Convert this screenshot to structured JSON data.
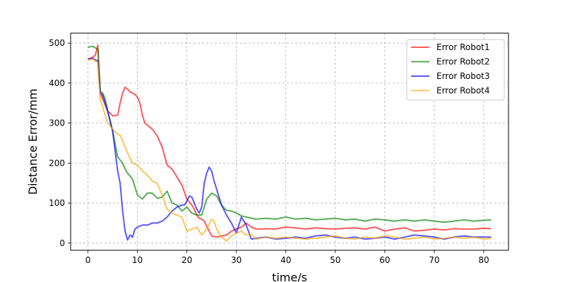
{
  "chart_data": {
    "type": "line",
    "title": "",
    "xlabel": "time/s",
    "ylabel": "Distance Error/mm",
    "xlim": [
      -3.5,
      85
    ],
    "ylim": [
      -18,
      525
    ],
    "x_ticks": [
      0,
      10,
      20,
      30,
      40,
      50,
      60,
      70,
      80
    ],
    "y_ticks": [
      0,
      100,
      200,
      300,
      400,
      500
    ],
    "grid": true,
    "grid_style": "dashed",
    "legend_position": "top-right",
    "series": [
      {
        "name": "Error Robot1",
        "color": "#ff0000",
        "x": [
          0,
          1,
          1.5,
          2,
          2.5,
          3,
          3.5,
          4,
          4.5,
          5,
          6,
          6.5,
          7,
          7.5,
          8,
          8.5,
          9,
          9.5,
          10,
          10.5,
          11,
          11.5,
          12,
          12.5,
          13,
          14,
          15,
          16,
          17,
          18,
          19,
          20,
          21,
          21.5,
          22,
          22.5,
          23,
          23.5,
          24,
          25,
          26,
          27,
          28,
          29,
          30,
          31,
          32,
          33,
          34,
          35,
          36,
          38,
          40,
          42,
          44,
          46,
          48,
          50,
          52,
          54,
          56,
          58,
          60,
          62,
          64,
          66,
          68,
          70,
          72,
          74,
          76,
          78,
          80,
          81.5
        ],
        "y": [
          460,
          465,
          470,
          495,
          375,
          360,
          345,
          330,
          325,
          318,
          320,
          350,
          375,
          390,
          385,
          378,
          375,
          372,
          365,
          350,
          320,
          300,
          295,
          290,
          285,
          268,
          240,
          195,
          185,
          165,
          145,
          110,
          95,
          85,
          70,
          62,
          60,
          55,
          42,
          18,
          15,
          18,
          20,
          30,
          35,
          40,
          50,
          40,
          35,
          35,
          36,
          35,
          40,
          38,
          35,
          38,
          36,
          35,
          37,
          38,
          35,
          40,
          30,
          35,
          38,
          30,
          32,
          35,
          33,
          36,
          35,
          35,
          37,
          36
        ]
      },
      {
        "name": "Error Robot2",
        "color": "#008000",
        "x": [
          0,
          1,
          1.5,
          2,
          2.5,
          3,
          3.5,
          4,
          5,
          6,
          7,
          7.5,
          8,
          9,
          10,
          11,
          12,
          13,
          14,
          15,
          16,
          17,
          18,
          19,
          20,
          21,
          22,
          23,
          24,
          25,
          26,
          27,
          28,
          29,
          30,
          31,
          32,
          34,
          36,
          38,
          40,
          42,
          44,
          46,
          48,
          50,
          52,
          54,
          56,
          58,
          60,
          62,
          64,
          66,
          68,
          70,
          72,
          74,
          76,
          78,
          80,
          81.5
        ],
        "y": [
          490,
          492,
          488,
          485,
          380,
          375,
          360,
          330,
          280,
          215,
          200,
          185,
          175,
          160,
          120,
          110,
          125,
          125,
          112,
          115,
          130,
          100,
          95,
          80,
          90,
          75,
          70,
          70,
          110,
          125,
          118,
          95,
          82,
          80,
          75,
          68,
          65,
          60,
          62,
          60,
          65,
          60,
          62,
          58,
          60,
          62,
          58,
          60,
          55,
          60,
          58,
          55,
          58,
          55,
          58,
          55,
          52,
          55,
          58,
          55,
          57,
          58
        ]
      },
      {
        "name": "Error Robot3",
        "color": "#0000ff",
        "x": [
          0,
          1,
          1.5,
          2,
          2.5,
          3,
          3.5,
          4,
          5,
          6,
          6.5,
          7,
          7.5,
          8,
          8.5,
          9,
          9.5,
          10,
          11,
          12,
          13,
          14,
          15,
          16,
          17,
          18,
          19,
          19.5,
          20,
          20.5,
          21,
          22,
          22.5,
          23,
          23.5,
          24,
          24.5,
          25,
          25.5,
          26,
          27,
          28,
          29,
          30,
          30.5,
          31,
          32,
          33,
          34,
          36,
          38,
          40,
          42,
          44,
          46,
          48,
          50,
          52,
          54,
          56,
          58,
          60,
          62,
          64,
          66,
          68,
          70,
          72,
          74,
          76,
          78,
          80,
          81.5
        ],
        "y": [
          460,
          462,
          458,
          456,
          375,
          370,
          350,
          330,
          280,
          180,
          150,
          80,
          30,
          8,
          20,
          15,
          35,
          40,
          45,
          45,
          50,
          50,
          55,
          65,
          80,
          90,
          95,
          95,
          105,
          118,
          115,
          85,
          75,
          90,
          150,
          175,
          190,
          180,
          155,
          135,
          95,
          70,
          50,
          25,
          45,
          65,
          45,
          10,
          12,
          15,
          10,
          12,
          15,
          12,
          18,
          20,
          15,
          12,
          15,
          10,
          12,
          15,
          10,
          15,
          20,
          18,
          15,
          10,
          15,
          18,
          15,
          15,
          15
        ]
      },
      {
        "name": "Error Robot4",
        "color": "#ffa500",
        "x": [
          0,
          1,
          1.5,
          2,
          2.5,
          3,
          3.5,
          4,
          5,
          6,
          6.5,
          7,
          8,
          9,
          10,
          11,
          12,
          13,
          14,
          15,
          16,
          17,
          18,
          19,
          20,
          21,
          22,
          23,
          24,
          25,
          25.5,
          26,
          27,
          28,
          29,
          30,
          31,
          32,
          33,
          34,
          36,
          38,
          40,
          42,
          44,
          46,
          48,
          50,
          52,
          54,
          56,
          58,
          60,
          62,
          64,
          66,
          68,
          70,
          72,
          74,
          76,
          78,
          80,
          81.5
        ],
        "y": [
          458,
          460,
          455,
          452,
          360,
          340,
          320,
          300,
          285,
          272,
          270,
          255,
          225,
          200,
          195,
          180,
          170,
          155,
          150,
          120,
          85,
          75,
          70,
          65,
          30,
          35,
          40,
          20,
          35,
          60,
          55,
          35,
          15,
          5,
          18,
          25,
          30,
          20,
          22,
          10,
          15,
          12,
          15,
          12,
          10,
          12,
          15,
          18,
          12,
          10,
          15,
          12,
          18,
          15,
          10,
          12,
          15,
          10,
          12,
          15,
          12,
          15,
          10,
          12
        ]
      }
    ]
  }
}
